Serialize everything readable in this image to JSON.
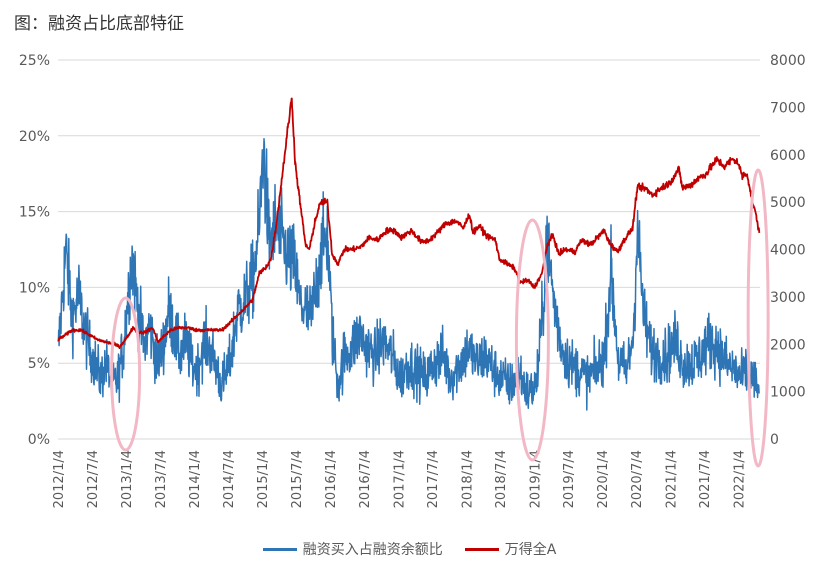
{
  "title": "图：融资占比底部特征",
  "chart_data": {
    "type": "line",
    "title": "图：融资占比底部特征",
    "y_left": {
      "ticks": [
        "0%",
        "5%",
        "10%",
        "15%",
        "20%",
        "25%"
      ],
      "range": [
        0,
        25
      ],
      "unit": "%"
    },
    "y_right": {
      "ticks": [
        "0",
        "1000",
        "2000",
        "3000",
        "4000",
        "5000",
        "6000",
        "7000",
        "8000"
      ],
      "range": [
        0,
        8000
      ]
    },
    "x_ticks": [
      "2012/1/4",
      "2012/7/4",
      "2013/1/4",
      "2013/7/4",
      "2014/1/4",
      "2014/7/4",
      "2015/1/4",
      "2015/7/4",
      "2016/1/4",
      "2016/7/4",
      "2017/1/4",
      "2017/7/4",
      "2018/1/4",
      "2018/7/4",
      "2019/1/4",
      "2019/7/4",
      "2020/1/4",
      "2020/7/4",
      "2021/1/4",
      "2021/7/4",
      "2022/1/4"
    ],
    "x_range": [
      "2012-01-04",
      "2022-04-30"
    ],
    "grid": "horizontal",
    "legend_position": "bottom",
    "series": [
      {
        "name": "融资买入占融资余额比",
        "axis": "left",
        "color": "#2e75b6",
        "points": [
          [
            "2012-01-04",
            5.5
          ],
          [
            "2012-02-15",
            12.5
          ],
          [
            "2012-03-20",
            8.0
          ],
          [
            "2012-04-25",
            9.5
          ],
          [
            "2012-05-20",
            7.5
          ],
          [
            "2012-06-20",
            6.0
          ],
          [
            "2012-07-20",
            5.0
          ],
          [
            "2012-08-20",
            4.0
          ],
          [
            "2012-09-20",
            5.0
          ],
          [
            "2012-10-20",
            3.5
          ],
          [
            "2012-11-20",
            4.0
          ],
          [
            "2012-12-20",
            6.0
          ],
          [
            "2013-01-10",
            9.0
          ],
          [
            "2013-02-05",
            12.0
          ],
          [
            "2013-03-05",
            9.0
          ],
          [
            "2013-04-10",
            6.0
          ],
          [
            "2013-05-10",
            7.5
          ],
          [
            "2013-06-20",
            5.0
          ],
          [
            "2013-07-20",
            6.0
          ],
          [
            "2013-08-20",
            8.5
          ],
          [
            "2013-09-20",
            7.0
          ],
          [
            "2013-10-20",
            5.5
          ],
          [
            "2013-11-20",
            6.5
          ],
          [
            "2013-12-20",
            5.0
          ],
          [
            "2014-01-20",
            4.5
          ],
          [
            "2014-03-01",
            6.5
          ],
          [
            "2014-04-15",
            5.5
          ],
          [
            "2014-06-01",
            3.5
          ],
          [
            "2014-07-15",
            5.0
          ],
          [
            "2014-08-25",
            8.5
          ],
          [
            "2014-10-01",
            9.0
          ],
          [
            "2014-11-15",
            10.5
          ],
          [
            "2014-12-20",
            14.0
          ],
          [
            "2015-01-10",
            19.5
          ],
          [
            "2015-02-10",
            13.0
          ],
          [
            "2015-03-15",
            14.0
          ],
          [
            "2015-04-20",
            13.0
          ],
          [
            "2015-05-25",
            12.0
          ],
          [
            "2015-06-25",
            11.5
          ],
          [
            "2015-07-25",
            9.0
          ],
          [
            "2015-08-25",
            8.5
          ],
          [
            "2015-09-25",
            8.0
          ],
          [
            "2015-10-25",
            10.5
          ],
          [
            "2015-11-20",
            12.5
          ],
          [
            "2015-12-20",
            13.5
          ],
          [
            "2016-01-15",
            7.0
          ],
          [
            "2016-02-15",
            3.5
          ],
          [
            "2016-03-20",
            5.5
          ],
          [
            "2016-05-01",
            6.0
          ],
          [
            "2016-06-10",
            7.0
          ],
          [
            "2016-07-20",
            6.0
          ],
          [
            "2016-09-01",
            5.5
          ],
          [
            "2016-10-15",
            6.5
          ],
          [
            "2016-12-01",
            5.5
          ],
          [
            "2017-01-15",
            4.0
          ],
          [
            "2017-03-01",
            5.0
          ],
          [
            "2017-04-15",
            4.5
          ],
          [
            "2017-06-01",
            4.0
          ],
          [
            "2017-07-15",
            5.0
          ],
          [
            "2017-09-01",
            5.5
          ],
          [
            "2017-10-15",
            4.0
          ],
          [
            "2017-12-01",
            5.0
          ],
          [
            "2018-01-15",
            6.0
          ],
          [
            "2018-03-01",
            5.0
          ],
          [
            "2018-04-15",
            5.5
          ],
          [
            "2018-06-01",
            4.5
          ],
          [
            "2018-07-15",
            4.0
          ],
          [
            "2018-09-01",
            3.5
          ],
          [
            "2018-10-15",
            4.5
          ],
          [
            "2018-12-01",
            3.0
          ],
          [
            "2019-01-15",
            3.5
          ],
          [
            "2019-02-20",
            8.5
          ],
          [
            "2019-03-10",
            13.5
          ],
          [
            "2019-04-20",
            9.0
          ],
          [
            "2019-06-01",
            6.0
          ],
          [
            "2019-07-15",
            5.0
          ],
          [
            "2019-09-01",
            4.5
          ],
          [
            "2019-10-15",
            4.0
          ],
          [
            "2019-12-01",
            4.5
          ],
          [
            "2020-01-15",
            5.5
          ],
          [
            "2020-02-20",
            11.0
          ],
          [
            "2020-04-01",
            5.0
          ],
          [
            "2020-05-15",
            4.5
          ],
          [
            "2020-06-20",
            7.0
          ],
          [
            "2020-07-10",
            14.0
          ],
          [
            "2020-08-15",
            8.0
          ],
          [
            "2020-09-20",
            6.0
          ],
          [
            "2020-11-01",
            5.5
          ],
          [
            "2020-12-15",
            5.5
          ],
          [
            "2021-02-01",
            6.5
          ],
          [
            "2021-03-15",
            5.0
          ],
          [
            "2021-05-01",
            5.0
          ],
          [
            "2021-06-15",
            5.5
          ],
          [
            "2021-08-01",
            6.5
          ],
          [
            "2021-09-15",
            6.0
          ],
          [
            "2021-11-01",
            5.0
          ],
          [
            "2021-12-15",
            4.5
          ],
          [
            "2022-01-20",
            4.0
          ],
          [
            "2022-02-20",
            4.5
          ],
          [
            "2022-03-20",
            4.0
          ],
          [
            "2022-04-25",
            3.0
          ]
        ]
      },
      {
        "name": "万得全A",
        "axis": "right",
        "color": "#c00000",
        "points": [
          [
            "2012-01-04",
            2100
          ],
          [
            "2012-02-15",
            2200
          ],
          [
            "2012-03-20",
            2300
          ],
          [
            "2012-05-05",
            2300
          ],
          [
            "2012-06-20",
            2200
          ],
          [
            "2012-08-01",
            2100
          ],
          [
            "2012-09-15",
            2050
          ],
          [
            "2012-11-01",
            2000
          ],
          [
            "2012-12-01",
            1950
          ],
          [
            "2013-01-10",
            2150
          ],
          [
            "2013-02-10",
            2350
          ],
          [
            "2013-03-10",
            2250
          ],
          [
            "2013-04-15",
            2250
          ],
          [
            "2013-05-25",
            2350
          ],
          [
            "2013-06-25",
            2050
          ],
          [
            "2013-07-20",
            2150
          ],
          [
            "2013-09-01",
            2300
          ],
          [
            "2013-10-15",
            2350
          ],
          [
            "2013-12-01",
            2350
          ],
          [
            "2014-01-15",
            2300
          ],
          [
            "2014-03-01",
            2300
          ],
          [
            "2014-04-15",
            2300
          ],
          [
            "2014-06-01",
            2300
          ],
          [
            "2014-07-15",
            2450
          ],
          [
            "2014-08-20",
            2600
          ],
          [
            "2014-10-01",
            2750
          ],
          [
            "2014-11-15",
            2950
          ],
          [
            "2014-12-20",
            3500
          ],
          [
            "2015-01-20",
            3600
          ],
          [
            "2015-02-20",
            3800
          ],
          [
            "2015-03-20",
            4500
          ],
          [
            "2015-04-20",
            5500
          ],
          [
            "2015-05-20",
            6500
          ],
          [
            "2015-06-12",
            7200
          ],
          [
            "2015-07-01",
            5800
          ],
          [
            "2015-07-20",
            5200
          ],
          [
            "2015-08-25",
            4100
          ],
          [
            "2015-09-15",
            4000
          ],
          [
            "2015-10-15",
            4600
          ],
          [
            "2015-11-15",
            5000
          ],
          [
            "2015-12-20",
            5000
          ],
          [
            "2016-01-15",
            3900
          ],
          [
            "2016-02-15",
            3700
          ],
          [
            "2016-03-20",
            4000
          ],
          [
            "2016-05-01",
            4000
          ],
          [
            "2016-06-15",
            4050
          ],
          [
            "2016-08-01",
            4250
          ],
          [
            "2016-09-15",
            4200
          ],
          [
            "2016-11-01",
            4400
          ],
          [
            "2016-12-15",
            4400
          ],
          [
            "2017-01-20",
            4250
          ],
          [
            "2017-03-15",
            4400
          ],
          [
            "2017-05-10",
            4150
          ],
          [
            "2017-06-20",
            4200
          ],
          [
            "2017-08-01",
            4350
          ],
          [
            "2017-09-15",
            4550
          ],
          [
            "2017-11-10",
            4600
          ],
          [
            "2017-12-20",
            4450
          ],
          [
            "2018-01-20",
            4750
          ],
          [
            "2018-02-10",
            4350
          ],
          [
            "2018-03-15",
            4500
          ],
          [
            "2018-04-20",
            4300
          ],
          [
            "2018-06-10",
            4200
          ],
          [
            "2018-06-30",
            3800
          ],
          [
            "2018-08-10",
            3700
          ],
          [
            "2018-09-20",
            3600
          ],
          [
            "2018-10-20",
            3300
          ],
          [
            "2018-12-01",
            3350
          ],
          [
            "2019-01-04",
            3200
          ],
          [
            "2019-02-15",
            3500
          ],
          [
            "2019-03-15",
            4100
          ],
          [
            "2019-04-15",
            4300
          ],
          [
            "2019-05-15",
            3900
          ],
          [
            "2019-06-20",
            4000
          ],
          [
            "2019-08-10",
            3950
          ],
          [
            "2019-09-15",
            4200
          ],
          [
            "2019-11-01",
            4100
          ],
          [
            "2019-12-20",
            4300
          ],
          [
            "2020-01-15",
            4400
          ],
          [
            "2020-02-10",
            4150
          ],
          [
            "2020-03-25",
            3950
          ],
          [
            "2020-05-01",
            4200
          ],
          [
            "2020-06-15",
            4450
          ],
          [
            "2020-07-10",
            5300
          ],
          [
            "2020-08-20",
            5300
          ],
          [
            "2020-10-01",
            5150
          ],
          [
            "2020-11-15",
            5300
          ],
          [
            "2020-12-31",
            5400
          ],
          [
            "2021-02-18",
            5700
          ],
          [
            "2021-03-10",
            5300
          ],
          [
            "2021-04-20",
            5350
          ],
          [
            "2021-06-01",
            5500
          ],
          [
            "2021-07-15",
            5600
          ],
          [
            "2021-09-10",
            5900
          ],
          [
            "2021-10-20",
            5750
          ],
          [
            "2021-12-01",
            5900
          ],
          [
            "2021-12-31",
            5850
          ],
          [
            "2022-01-25",
            5550
          ],
          [
            "2022-02-20",
            5600
          ],
          [
            "2022-03-15",
            5100
          ],
          [
            "2022-04-10",
            4700
          ],
          [
            "2022-04-26",
            4350
          ]
        ]
      }
    ]
  }
}
